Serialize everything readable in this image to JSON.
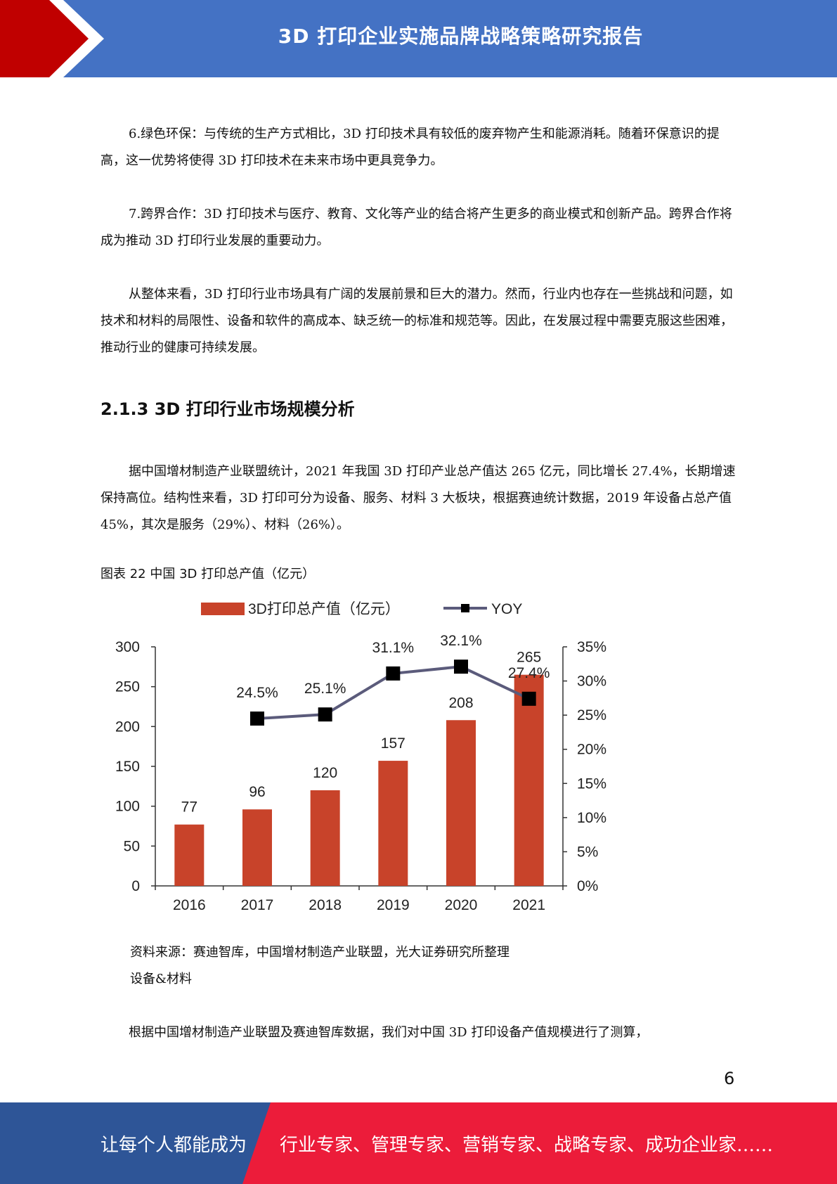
{
  "header": {
    "title": "3D 打印企业实施品牌战略策略研究报告",
    "colors": {
      "bar": "#4472c4",
      "accent": "#c00000"
    }
  },
  "paragraphs": [
    "6.绿色环保：与传统的生产方式相比，3D 打印技术具有较低的废弃物产生和能源消耗。随着环保意识的提高，这一优势将使得 3D 打印技术在未来市场中更具竞争力。",
    "7.跨界合作：3D 打印技术与医疗、教育、文化等产业的结合将产生更多的商业模式和创新产品。跨界合作将成为推动 3D 打印行业发展的重要动力。",
    "从整体来看，3D 打印行业市场具有广阔的发展前景和巨大的潜力。然而，行业内也存在一些挑战和问题，如技术和材料的局限性、设备和软件的高成本、缺乏统一的标准和规范等。因此，在发展过程中需要克服这些困难，推动行业的健康可持续发展。"
  ],
  "section_heading": "2.1.3 3D 打印行业市场规模分析",
  "market_paragraph": "据中国增材制造产业联盟统计，2021 年我国 3D 打印产业总产值达 265 亿元，同比增长 27.4%，长期增速保持高位。结构性来看，3D 打印可分为设备、服务、材料 3 大板块，根据赛迪统计数据，2019 年设备占总产值 45%，其次是服务（29%）、材料（26%）。",
  "figure_caption": "图表 22 中国 3D 打印总产值（亿元）",
  "chart_data": {
    "type": "bar",
    "categories": [
      "2016",
      "2017",
      "2018",
      "2019",
      "2020",
      "2021"
    ],
    "series": [
      {
        "name": "3D打印总产值（亿元）",
        "type": "bar",
        "axis": "left",
        "values": [
          77,
          96,
          120,
          157,
          208,
          265
        ],
        "labels": [
          "77",
          "96",
          "120",
          "157",
          "208",
          "265"
        ],
        "color": "#c8432a"
      },
      {
        "name": "YOY",
        "type": "line",
        "axis": "right",
        "values": [
          null,
          24.5,
          25.1,
          31.1,
          32.1,
          27.4
        ],
        "labels": [
          "",
          "24.5%",
          "25.1%",
          "31.1%",
          "32.1%",
          "27.4%"
        ],
        "color": "#5b5b7b"
      }
    ],
    "left_axis": {
      "ylim": [
        0,
        300
      ],
      "ticks": [
        "0",
        "50",
        "100",
        "150",
        "200",
        "250",
        "300"
      ]
    },
    "right_axis": {
      "ylim": [
        0,
        35
      ],
      "ticks": [
        "0%",
        "5%",
        "10%",
        "15%",
        "20%",
        "25%",
        "30%",
        "35%"
      ]
    },
    "legend_position": "top",
    "grid": false
  },
  "source_note": "资料来源：赛迪智库，中国增材制造产业联盟，光大证券研究所整理",
  "subheading": "设备&材料",
  "closing_paragraph": "根据中国增材制造产业联盟及赛迪智库数据，我们对中国 3D 打印设备产值规模进行了测算，",
  "page_number": "6",
  "footer": {
    "left": "让每个人都能成为",
    "right": "行业专家、管理专家、营销专家、战略专家、成功企业家……",
    "colors": {
      "left": "#2e5597",
      "right": "#ec1c3a"
    }
  }
}
